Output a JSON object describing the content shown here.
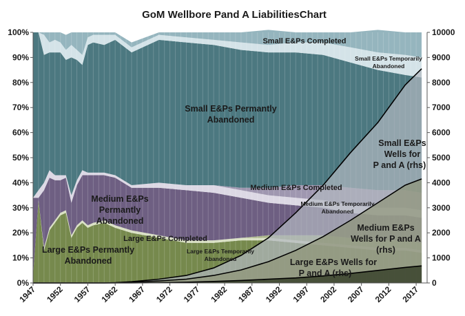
{
  "chart_data": {
    "type": "area",
    "title": "GoM Wellbore Pand A LiabilitiesChart",
    "xlabel": "",
    "ylabel": "",
    "y2label": "",
    "xlim": [
      1947,
      2019
    ],
    "ylim": [
      0,
      100
    ],
    "y2lim": [
      0,
      10000
    ],
    "x_ticks": [
      "1947",
      "1952",
      "1957",
      "1962",
      "1967",
      "1972",
      "1977",
      "1982",
      "1987",
      "1992",
      "1997",
      "2002",
      "2007",
      "2012",
      "2017"
    ],
    "y_ticks": [
      "0%",
      "10%",
      "20%",
      "30%",
      "40%",
      "50%",
      "60%",
      "70%",
      "80%",
      "90%",
      "100%"
    ],
    "y2_ticks": [
      "0",
      "1000",
      "2000",
      "3000",
      "4000",
      "5000",
      "6000",
      "7000",
      "8000",
      "9000",
      "10000"
    ],
    "grid": false,
    "x": [
      1947,
      1948,
      1949,
      1950,
      1951,
      1952,
      1953,
      1954,
      1955,
      1956,
      1957,
      1958,
      1960,
      1962,
      1965,
      1970,
      1975,
      1980,
      1985,
      1990,
      1995,
      2000,
      2005,
      2010,
      2015,
      2018
    ],
    "series": [
      {
        "name": "Large E&Ps Permantly Abandoned",
        "axis": "left",
        "color": "#76894d",
        "values": [
          3,
          33,
          13,
          21,
          24,
          27,
          28,
          18,
          22,
          24,
          22,
          23,
          24,
          22,
          20,
          18,
          16,
          16,
          17,
          17,
          16,
          15,
          14,
          13,
          13,
          12
        ]
      },
      {
        "name": "Large E&Ps Completed",
        "axis": "left",
        "color": "#d9e0c4",
        "values": [
          0,
          0,
          1,
          1,
          1,
          1,
          1,
          1,
          1,
          1,
          1,
          1,
          1,
          1,
          1,
          1,
          1,
          1,
          1,
          1,
          1,
          1,
          1,
          1,
          1,
          1
        ]
      },
      {
        "name": "Large E&Ps Temporarily Abandoned",
        "axis": "left",
        "color": "#a9b48a",
        "values": [
          0,
          0,
          0,
          0,
          0,
          0,
          0,
          0,
          0,
          0,
          0,
          0,
          0,
          0,
          0,
          0,
          0,
          0,
          0,
          1,
          2,
          3,
          3,
          3,
          3,
          3
        ]
      },
      {
        "name": "Medium E&Ps Permantly Abandoned",
        "axis": "left",
        "color": "#6e5f82",
        "values": [
          31,
          1,
          23,
          20,
          16,
          13,
          13,
          13,
          16,
          18,
          20,
          19,
          18,
          19,
          17,
          19,
          20,
          19,
          16,
          13,
          12,
          11,
          10,
          10,
          10,
          10
        ]
      },
      {
        "name": "Medium E&Ps Completed",
        "axis": "left",
        "color": "#dcd8e4",
        "values": [
          0,
          3,
          3,
          3,
          2,
          2,
          1,
          3,
          2,
          2,
          1,
          1,
          1,
          1,
          1,
          2,
          2,
          3,
          3,
          3,
          3,
          3,
          3,
          3,
          3,
          3
        ]
      },
      {
        "name": "Medium E&Ps Temporarily Abandoned",
        "axis": "left",
        "color": "#9f97b0",
        "values": [
          0,
          0,
          0,
          0,
          0,
          0,
          0,
          0,
          0,
          0,
          0,
          0,
          0,
          0,
          0,
          0,
          0,
          0,
          1,
          3,
          5,
          6,
          7,
          7,
          7,
          7
        ]
      },
      {
        "name": "Small E&Ps Permanly Abandoned",
        "axis": "left",
        "color": "#4c7880",
        "values": [
          66,
          63,
          51,
          47,
          49,
          49,
          46,
          55,
          48,
          42,
          51,
          52,
          51,
          54,
          53,
          57,
          57,
          56,
          55,
          54,
          53,
          52,
          50,
          48,
          46,
          46
        ]
      },
      {
        "name": "Small E&Ps Completed",
        "axis": "left",
        "color": "#d4e3e8",
        "values": [
          0,
          0,
          8,
          4,
          5,
          4,
          4,
          5,
          4,
          4,
          3,
          3,
          4,
          2,
          2,
          2,
          2,
          2,
          3,
          3,
          4,
          5,
          6,
          7,
          8,
          8
        ]
      },
      {
        "name": "Small E&Ps Temporarily Abandoned",
        "axis": "left",
        "color": "#95b5be",
        "values": [
          0,
          0,
          1,
          4,
          3,
          4,
          6,
          5,
          7,
          9,
          2,
          1,
          1,
          1,
          2,
          1,
          2,
          3,
          4,
          6,
          4,
          4,
          6,
          9,
          9,
          10
        ]
      },
      {
        "name": "Large E&Ps Wells for P and A",
        "axis": "right",
        "color": "#26301a",
        "values": [
          0,
          0,
          0,
          0,
          0,
          0,
          0,
          0,
          0,
          0,
          0,
          0,
          0,
          0,
          0,
          10,
          30,
          60,
          100,
          150,
          200,
          280,
          380,
          500,
          620,
          680
        ]
      },
      {
        "name": "Medium E&Ps Wells for P and A",
        "axis": "right",
        "color": "#8f9478",
        "values": [
          0,
          0,
          0,
          0,
          0,
          0,
          0,
          0,
          0,
          0,
          0,
          0,
          0,
          5,
          30,
          80,
          150,
          300,
          520,
          850,
          1300,
          1850,
          2500,
          3200,
          3900,
          4150
        ]
      },
      {
        "name": "Small E&Ps Wells for P and A",
        "axis": "right",
        "color": "#b2b8c0",
        "values": [
          0,
          0,
          0,
          0,
          0,
          0,
          0,
          0,
          0,
          0,
          0,
          0,
          0,
          10,
          50,
          150,
          300,
          600,
          1100,
          1800,
          2800,
          3900,
          5200,
          6400,
          7900,
          8550
        ]
      }
    ],
    "labels": {
      "small_completed": "Small E&Ps Completed",
      "small_temp_1": "Small E&Ps Temporarily",
      "small_temp_2": "Abandoned",
      "small_perm_1": "Small E&Ps Permantly",
      "small_perm_2": "Abandoned",
      "small_wells_1": "Small E&Ps",
      "small_wells_2": "Wells for",
      "small_wells_3": "P and A (rhs)",
      "medium_completed": "Medium E&Ps Completed",
      "medium_temp_1": "Medium E&Ps Temporarily",
      "medium_temp_2": "Abandoned",
      "medium_perm_1": "Medium E&Ps",
      "medium_perm_2": "Permantly",
      "medium_perm_3": "Abandoned",
      "medium_wells_1": "Medium E&Ps",
      "medium_wells_2": "Wells for P and A",
      "medium_wells_3": "(rhs)",
      "large_completed": "Large E&Ps Completed",
      "large_perm_1": "Large E&Ps Permantly",
      "large_perm_2": "Abandoned",
      "large_temp_1": "Large E&Ps Temporarily",
      "large_temp_2": "Abandoned",
      "large_wells_1": "Large E&Ps Wells for",
      "large_wells_2": "P and A (rhs)"
    }
  }
}
